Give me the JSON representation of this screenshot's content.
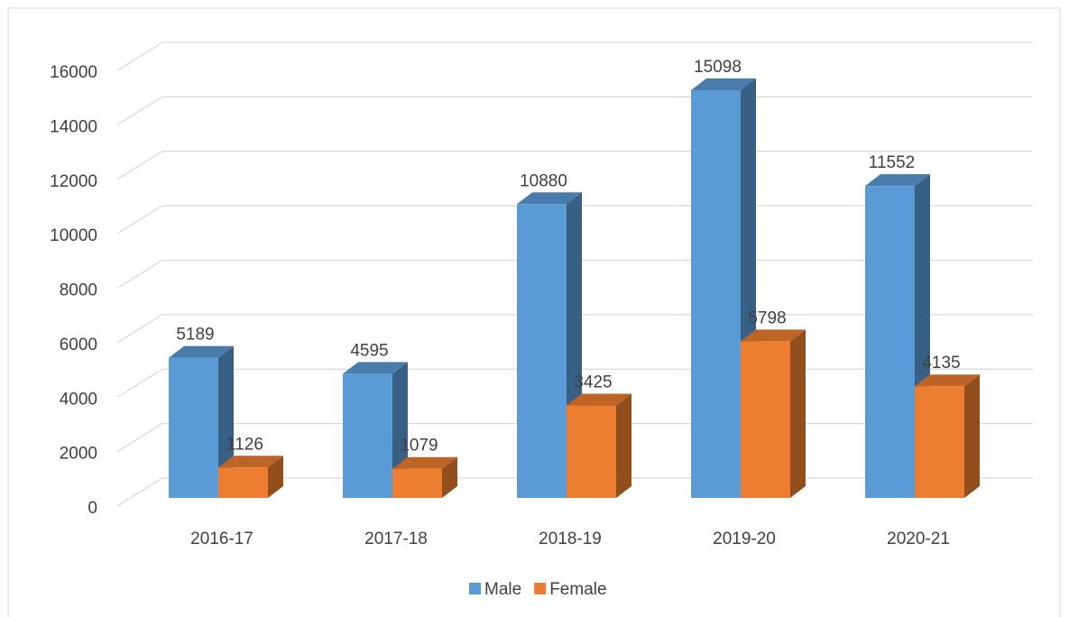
{
  "chart_data": {
    "type": "bar3d",
    "categories": [
      "2016-17",
      "2017-18",
      "2018-19",
      "2019-20",
      "2020-21"
    ],
    "series": [
      {
        "name": "Male",
        "color": "#5b9bd5",
        "values": [
          5189,
          4595,
          10880,
          15098,
          11552
        ]
      },
      {
        "name": "Female",
        "color": "#ed7d31",
        "values": [
          1126,
          1079,
          3425,
          5798,
          4135
        ]
      }
    ],
    "ylim": [
      0,
      16000
    ],
    "yticks": [
      0,
      2000,
      4000,
      6000,
      8000,
      10000,
      12000,
      14000,
      16000
    ],
    "grid": true,
    "legend": "bottom"
  }
}
